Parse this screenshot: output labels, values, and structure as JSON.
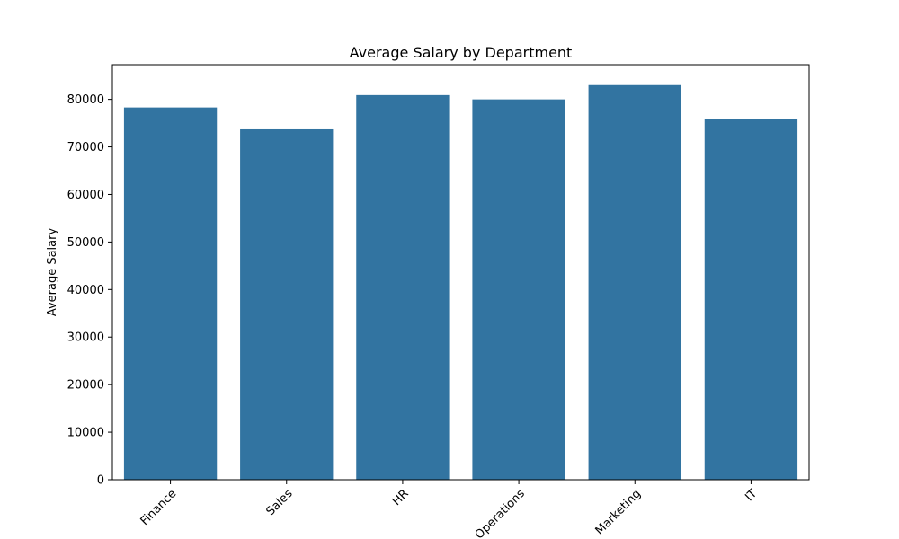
{
  "chart_data": {
    "type": "bar",
    "title": "Average Salary by Department",
    "xlabel": "",
    "ylabel": "Average Salary",
    "categories": [
      "Finance",
      "Sales",
      "HR",
      "Operations",
      "Marketing",
      "IT"
    ],
    "values": [
      78300,
      73700,
      80900,
      80000,
      83000,
      75900
    ],
    "ylim": [
      0,
      87300
    ],
    "yticks": [
      0,
      10000,
      20000,
      30000,
      40000,
      50000,
      60000,
      70000,
      80000
    ],
    "ytick_labels": [
      "0",
      "10000",
      "20000",
      "30000",
      "40000",
      "50000",
      "60000",
      "70000",
      "80000"
    ],
    "bar_color": "#3274a1",
    "grid": false,
    "legend": "none",
    "xtick_rotation_deg": 45
  }
}
